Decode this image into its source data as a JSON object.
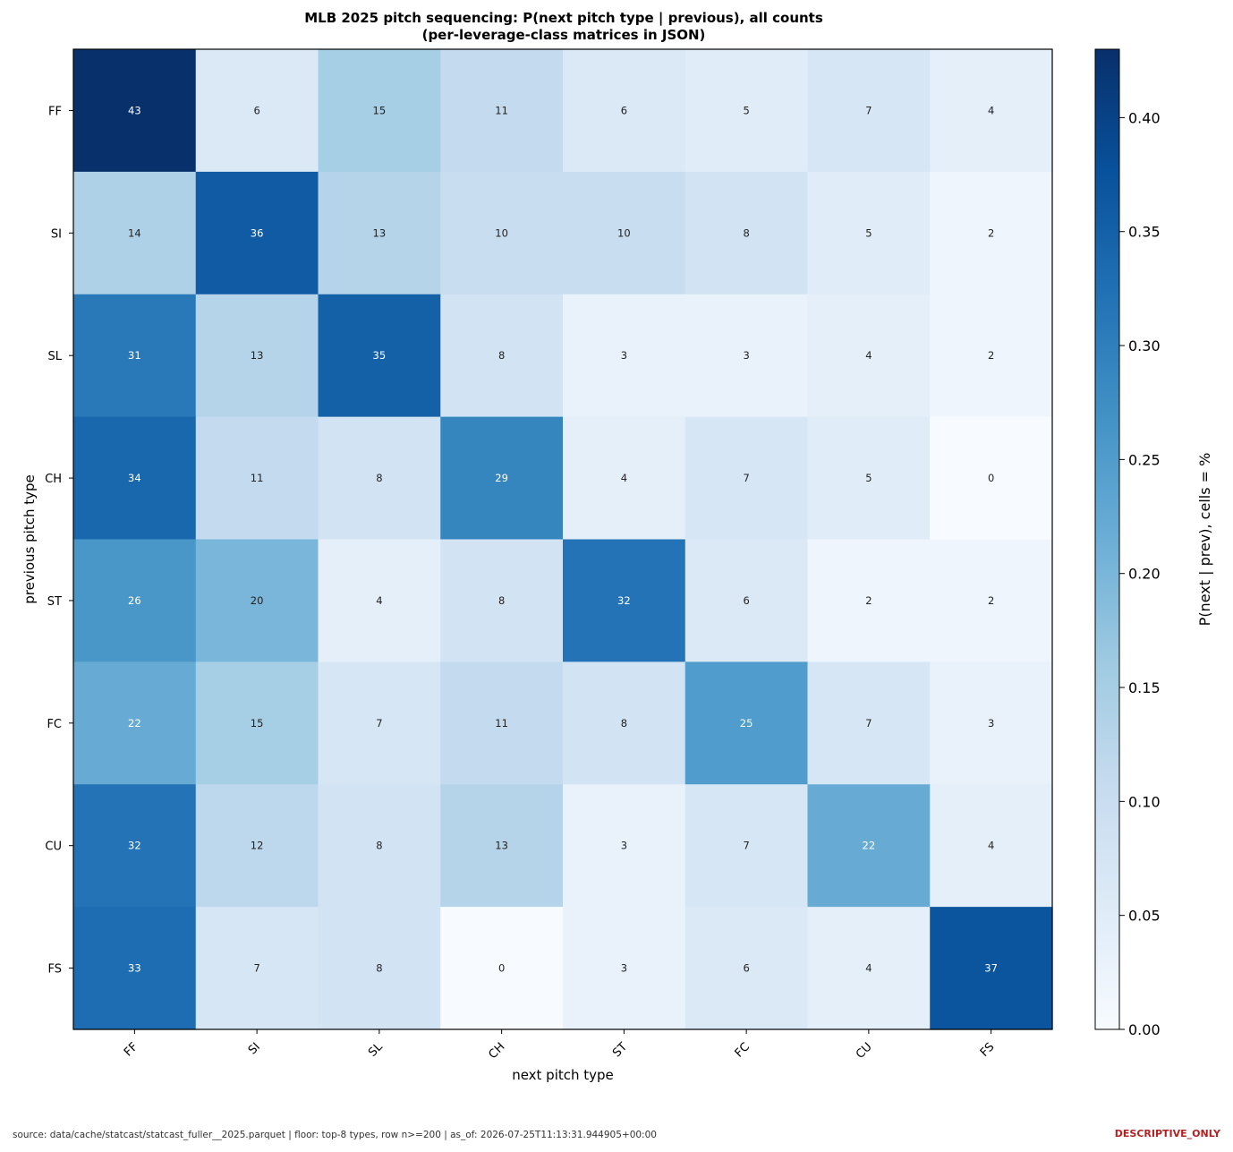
{
  "title": {
    "line1": "MLB 2025 pitch sequencing: P(next pitch type | previous), all counts",
    "line2": "(per-leverage-class matrices in JSON)"
  },
  "footer": {
    "source": "source: data/cache/statcast/statcast_fuller__2025.parquet  |  floor: top-8 types, row n>=200  |  as_of: 2026-07-25T11:13:31.944905+00:00",
    "badge": "DESCRIPTIVE_ONLY"
  },
  "chart_data": {
    "type": "heatmap",
    "rows": [
      "FF",
      "SI",
      "SL",
      "CH",
      "ST",
      "FC",
      "CU",
      "FS"
    ],
    "columns": [
      "FF",
      "SI",
      "SL",
      "CH",
      "ST",
      "FC",
      "CU",
      "FS"
    ],
    "values": [
      [
        43,
        6,
        15,
        11,
        6,
        5,
        7,
        4
      ],
      [
        14,
        36,
        13,
        10,
        10,
        8,
        5,
        2
      ],
      [
        31,
        13,
        35,
        8,
        3,
        3,
        4,
        2
      ],
      [
        34,
        11,
        8,
        29,
        4,
        7,
        5,
        0
      ],
      [
        26,
        20,
        4,
        8,
        32,
        6,
        2,
        2
      ],
      [
        22,
        15,
        7,
        11,
        8,
        25,
        7,
        3
      ],
      [
        32,
        12,
        8,
        13,
        3,
        7,
        22,
        4
      ],
      [
        33,
        7,
        8,
        0,
        3,
        6,
        4,
        37
      ]
    ],
    "cell_units": "%",
    "xlabel": "next pitch type",
    "ylabel": "previous pitch type",
    "colorbar": {
      "label": "P(next | prev), cells = %",
      "range": [
        0,
        0.43
      ],
      "ticks": [
        "0.00",
        "0.05",
        "0.10",
        "0.15",
        "0.20",
        "0.25",
        "0.30",
        "0.35",
        "0.40"
      ],
      "colormap": "Blues"
    }
  }
}
